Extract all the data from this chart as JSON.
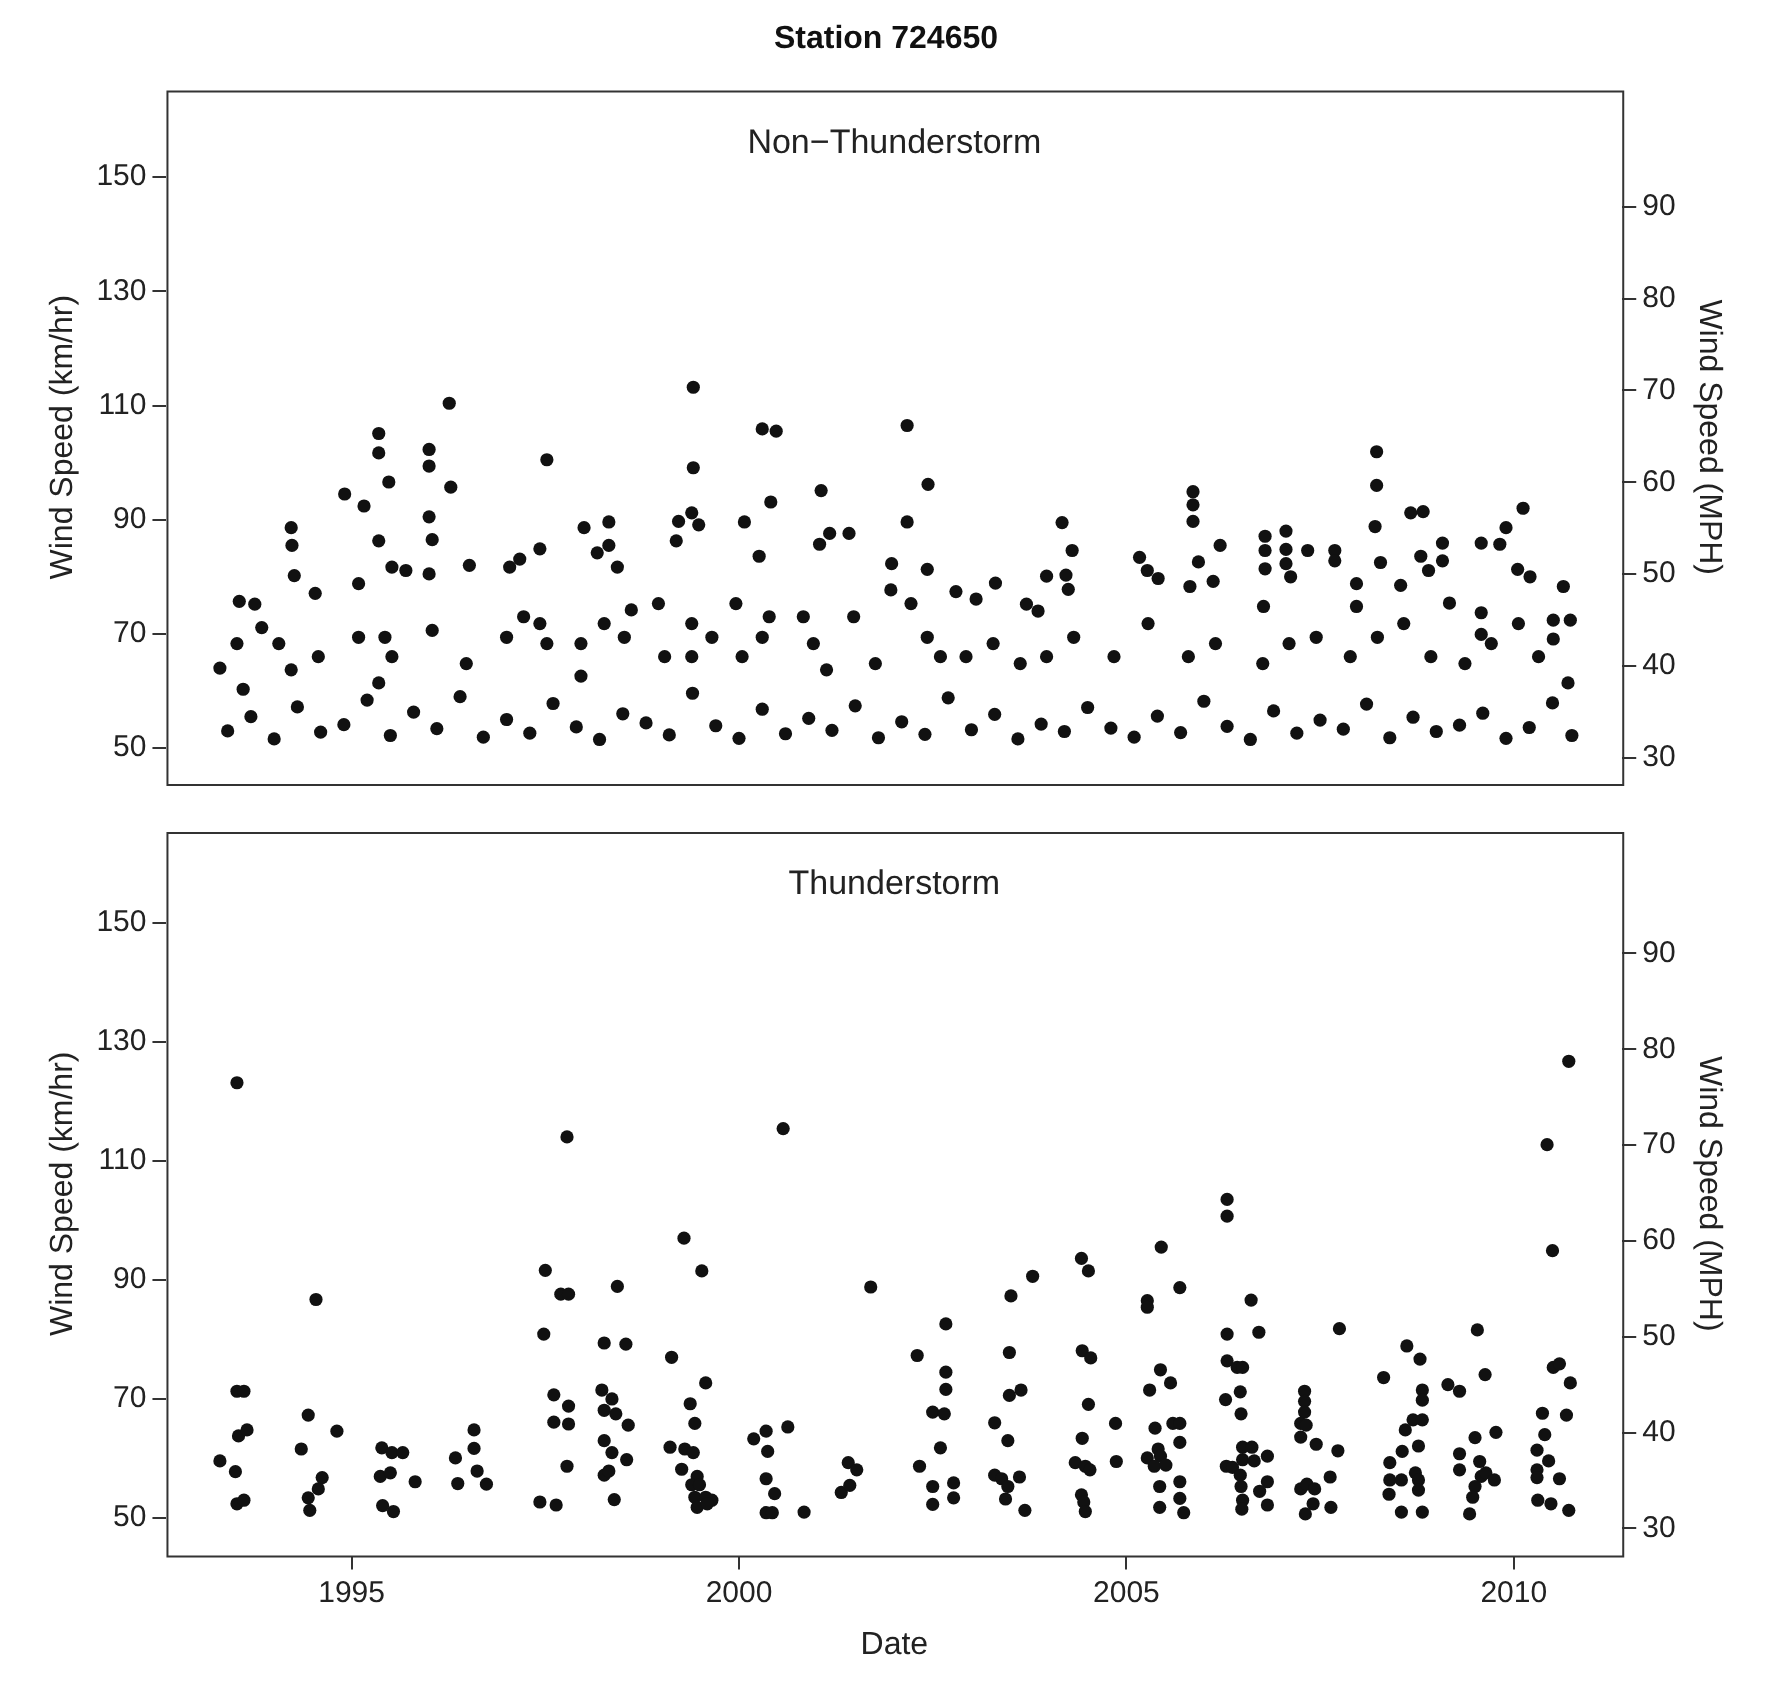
{
  "chart_data": [
    {
      "type": "scatter",
      "title": "Station 724650",
      "ylabel": "Wind Speed (km/hr)",
      "y2label": "Wind Speed (MPH)",
      "annotations": [
        "Non−Thunderstorm"
      ],
      "xlim": [
        1992.61,
        2011.4
      ],
      "ylim": [
        43.7,
        165.2
      ],
      "yticks": [
        50,
        70,
        90,
        110,
        130,
        150
      ],
      "y2lim": [
        27.16,
        102.67
      ],
      "y2ticks": [
        30,
        40,
        50,
        60,
        70,
        80,
        90
      ],
      "tick_labels": "y",
      "marker": "circle",
      "series": [
        {
          "color": "#111111",
          "x": [
            1999.41,
            1999.41,
            1999.39,
            1999.22,
            1999.48,
            1999.19,
            1996.26,
            1996.0,
            1996.0,
            1996.28,
            1996.0,
            1996.04,
            1996.0,
            1995.35,
            1995.35,
            1995.48,
            1995.35,
            1994.91,
            1995.16,
            1994.22,
            1994.23,
            1994.26,
            1994.53,
            1993.55,
            1993.75,
            1993.84,
            1993.3,
            1997.52,
            1997.43,
            1997.04,
            1997.17,
            1996.52,
            1995.52,
            1995.09,
            1995.7,
            1998.0,
            1998.32,
            1998.32,
            1998.17,
            1998.43,
            2000.3,
            2000.48,
            2000.41,
            2000.07,
            2000.26,
            2001.06,
            2001.04,
            2001.17,
            2001.42,
            2002.17,
            2002.44,
            2002.17,
            2002.43,
            2001.97,
            2001.96,
            2004.17,
            2004.3,
            2004.22,
            2004.25,
            2003.97,
            2003.31,
            2003.06,
            2002.8,
            2003.71,
            2003.86,
            2005.86,
            2005.86,
            2005.86,
            2005.93,
            2006.21,
            2005.17,
            2005.27,
            2005.41,
            2005.82,
            2006.12,
            2006.79,
            2006.79,
            2006.79,
            2007.06,
            2007.06,
            2007.06,
            2007.34,
            2007.69,
            2007.69,
            2007.12,
            2006.77,
            2008.23,
            2008.23,
            2008.21,
            2008.28,
            2007.97,
            2007.97,
            2008.67,
            2008.83,
            2008.54,
            2008.8,
            2008.9,
            2009.08,
            2009.08,
            2009.17,
            2010.12,
            2009.9,
            2009.58,
            2009.82,
            2010.05,
            2010.21,
            2010.64,
            2010.73,
            2010.51,
            2010.51,
            2009.58,
            2009.58,
            1993.52,
            1993.6,
            1994.06,
            1994.22,
            1994.57,
            1995.09,
            1995.43,
            1995.52,
            1995.35,
            1996.04,
            1996.48,
            1997.0,
            1997.22,
            1997.43,
            1997.52,
            1997.96,
            1997.96,
            1998.26,
            1998.52,
            1998.61,
            1998.96,
            1999.04,
            1999.39,
            1999.39,
            1999.65,
            1999.96,
            2000.04,
            2000.3,
            2000.39,
            2000.83,
            2000.96,
            2001.13,
            2001.48,
            2001.76,
            2002.22,
            2002.43,
            2002.6,
            2002.93,
            2003.28,
            2003.63,
            2003.97,
            2004.32,
            2004.84,
            2005.28,
            2005.8,
            2006.15,
            2006.76,
            2007.1,
            2007.45,
            2007.89,
            2008.24,
            2008.58,
            2008.93,
            2009.37,
            2009.71,
            2010.06,
            2010.32,
            2010.7,
            1993.4,
            1993.7,
            1994.0,
            1994.3,
            1994.6,
            1994.9,
            1995.2,
            1995.5,
            1995.8,
            1996.1,
            1996.4,
            1996.7,
            1997.0,
            1997.3,
            1997.6,
            1997.9,
            1998.2,
            1998.5,
            1998.8,
            1999.1,
            1999.4,
            1999.7,
            2000.0,
            2000.3,
            2000.6,
            2000.9,
            2001.2,
            2001.5,
            2001.8,
            2002.1,
            2002.4,
            2002.7,
            2003.0,
            2003.3,
            2003.6,
            2003.9,
            2004.2,
            2004.5,
            2004.8,
            2005.1,
            2005.4,
            2005.7,
            2006.0,
            2006.3,
            2006.6,
            2006.9,
            2007.2,
            2007.5,
            2007.8,
            2008.1,
            2008.4,
            2008.7,
            2009.0,
            2009.3,
            2009.6,
            2009.9,
            2010.2,
            2010.5,
            2010.75
          ],
          "values": [
            113.2,
            99.1,
            91.2,
            89.7,
            89.1,
            86.3,
            110.4,
            102.3,
            99.4,
            95.7,
            90.5,
            86.5,
            80.5,
            105.1,
            101.7,
            96.6,
            86.3,
            94.5,
            92.4,
            88.6,
            85.5,
            80.2,
            77.1,
            75.7,
            75.2,
            71.1,
            64.0,
            100.5,
            84.9,
            81.7,
            83.1,
            82.0,
            81.7,
            78.8,
            81.1,
            88.6,
            89.6,
            85.5,
            84.2,
            81.7,
            105.9,
            105.5,
            93.1,
            89.6,
            83.6,
            95.1,
            85.7,
            87.6,
            87.6,
            106.5,
            96.2,
            89.6,
            81.3,
            82.3,
            77.7,
            89.5,
            84.6,
            80.3,
            77.8,
            80.1,
            78.9,
            76.1,
            77.4,
            75.2,
            74.0,
            94.9,
            92.6,
            89.7,
            82.6,
            85.5,
            83.4,
            81.1,
            79.7,
            78.3,
            79.2,
            87.1,
            84.6,
            81.4,
            88.0,
            84.8,
            82.3,
            84.6,
            84.6,
            82.8,
            80.0,
            74.8,
            101.9,
            96.0,
            88.8,
            82.5,
            78.8,
            74.8,
            91.2,
            91.4,
            78.5,
            83.6,
            81.1,
            85.9,
            82.8,
            75.4,
            92.0,
            88.6,
            85.9,
            85.7,
            81.3,
            80.0,
            78.3,
            72.4,
            72.4,
            69.1,
            73.7,
            69.9,
            68.3,
            60.3,
            68.3,
            63.7,
            66.0,
            69.4,
            69.4,
            66.0,
            61.4,
            70.6,
            64.8,
            69.4,
            73.0,
            71.8,
            68.3,
            68.3,
            62.6,
            71.8,
            69.4,
            74.2,
            75.3,
            66.0,
            71.8,
            66.0,
            69.4,
            75.3,
            66.0,
            69.4,
            73.0,
            73.0,
            68.3,
            63.7,
            73.0,
            64.8,
            75.3,
            69.4,
            66.0,
            66.0,
            68.3,
            64.8,
            66.0,
            69.4,
            66.0,
            71.8,
            66.0,
            68.3,
            64.8,
            68.3,
            69.4,
            66.0,
            69.4,
            71.8,
            66.0,
            64.8,
            68.3,
            71.8,
            66.0,
            61.4,
            53.0,
            55.5,
            51.6,
            57.2,
            52.8,
            54.1,
            58.4,
            52.2,
            56.3,
            53.4,
            59.0,
            51.9,
            55.0,
            52.6,
            57.8,
            53.7,
            51.5,
            56.0,
            54.4,
            52.3,
            59.6,
            53.9,
            51.7,
            56.8,
            52.5,
            55.2,
            53.1,
            57.4,
            51.8,
            54.6,
            52.4,
            58.8,
            53.2,
            55.9,
            51.6,
            54.2,
            52.9,
            57.1,
            53.5,
            51.9,
            55.6,
            52.7,
            58.2,
            53.8,
            51.5,
            56.5,
            52.6,
            54.9,
            53.3,
            57.7,
            51.8,
            55.4,
            52.9,
            54.0,
            56.1,
            51.7,
            53.6,
            57.9,
            52.2
          ]
        }
      ]
    },
    {
      "type": "scatter",
      "xlabel": "Date",
      "ylabel": "Wind Speed (km/hr)",
      "y2label": "Wind Speed (MPH)",
      "annotations": [
        "Thunderstorm"
      ],
      "xlim": [
        1992.61,
        2011.4
      ],
      "xticks": [
        1995,
        2000,
        2005,
        2010
      ],
      "ylim": [
        43.7,
        165.2
      ],
      "yticks": [
        50,
        70,
        90,
        110,
        130,
        150
      ],
      "y2lim": [
        27.16,
        102.67
      ],
      "y2ticks": [
        30,
        40,
        50,
        60,
        70,
        80,
        90
      ],
      "marker": "circle",
      "series": [
        {
          "color": "#111111",
          "x": [
            1993.52,
            1993.3,
            1993.5,
            1993.52,
            1993.61,
            1993.54,
            1993.65,
            1993.52,
            1993.61,
            1994.54,
            1994.44,
            1994.35,
            1994.81,
            1994.44,
            1994.46,
            1994.57,
            1994.62,
            1995.39,
            1995.52,
            1995.66,
            1995.37,
            1995.5,
            1995.82,
            1995.4,
            1995.54,
            1996.34,
            1996.58,
            1996.58,
            1996.62,
            1996.37,
            1996.74,
            1997.5,
            1997.48,
            1997.7,
            1997.8,
            1997.78,
            1997.61,
            1997.61,
            1997.8,
            1997.8,
            1997.78,
            1997.43,
            1997.64,
            1998.43,
            1998.26,
            1998.54,
            1998.23,
            1998.36,
            1998.26,
            1998.41,
            1998.57,
            1998.26,
            1998.36,
            1998.55,
            1998.26,
            1998.32,
            1998.39,
            1999.29,
            1999.52,
            1999.13,
            1999.57,
            1999.37,
            1999.43,
            1999.11,
            1999.3,
            1999.41,
            1999.26,
            1999.46,
            1999.39,
            1999.49,
            1999.43,
            1999.57,
            1999.65,
            1999.46,
            1999.59,
            2000.19,
            2000.35,
            2000.37,
            2000.63,
            2000.35,
            2000.46,
            2000.35,
            2000.43,
            2000.57,
            2000.84,
            2001.32,
            2001.43,
            2001.41,
            2001.52,
            2001.7,
            2002.3,
            2002.67,
            2002.67,
            2002.67,
            2002.5,
            2002.65,
            2002.6,
            2002.33,
            2002.5,
            2002.77,
            2002.5,
            2002.77,
            2003.3,
            2003.47,
            2003.51,
            2003.79,
            2003.49,
            2003.49,
            2003.64,
            2003.3,
            2003.39,
            2003.47,
            2003.44,
            2003.62,
            2003.69,
            2004.42,
            2004.51,
            2004.43,
            2004.54,
            2004.51,
            2004.43,
            2004.34,
            2004.47,
            2004.53,
            2004.42,
            2004.45,
            2004.47,
            2004.86,
            2004.87,
            2005.27,
            2005.27,
            2005.45,
            2005.69,
            2005.44,
            2005.57,
            2005.3,
            2005.37,
            2005.6,
            2005.69,
            2005.69,
            2005.41,
            2005.44,
            2005.27,
            2005.36,
            2005.51,
            2005.43,
            2005.69,
            2005.69,
            2005.43,
            2005.74,
            2006.3,
            2006.3,
            2006.61,
            2006.3,
            2006.71,
            2006.3,
            2006.43,
            2006.5,
            2006.47,
            2006.28,
            2006.48,
            2006.5,
            2006.62,
            2006.29,
            2006.37,
            2006.82,
            2006.5,
            2006.65,
            2006.47,
            2006.48,
            2006.82,
            2006.5,
            2006.72,
            2006.82,
            2006.49,
            2007.3,
            2007.3,
            2007.3,
            2007.25,
            2007.32,
            2007.25,
            2007.45,
            2007.75,
            2007.73,
            2007.63,
            2007.25,
            2007.33,
            2007.43,
            2007.41,
            2007.64,
            2007.31,
            2008.32,
            2008.62,
            2008.79,
            2008.82,
            2008.82,
            2008.7,
            2008.82,
            2008.6,
            2008.77,
            2008.56,
            2008.4,
            2008.73,
            2008.77,
            2008.4,
            2008.55,
            2008.39,
            2008.77,
            2008.55,
            2008.82,
            2009.15,
            2009.3,
            2009.53,
            2009.63,
            2009.5,
            2009.77,
            2009.3,
            2009.3,
            2009.56,
            2009.58,
            2009.64,
            2009.75,
            2009.5,
            2009.47,
            2009.43,
            2010.71,
            2010.43,
            2010.5,
            2010.51,
            2010.59,
            2010.73,
            2010.37,
            2010.68,
            2010.4,
            2010.3,
            2010.45,
            2010.3,
            2010.3,
            2010.59,
            2010.31,
            2010.48,
            2010.71
          ],
          "values": [
            123.1,
            59.6,
            57.8,
            71.3,
            71.3,
            63.8,
            64.8,
            52.4,
            53.0,
            86.7,
            67.3,
            61.6,
            64.6,
            53.4,
            51.3,
            54.9,
            56.8,
            61.8,
            61.0,
            61.0,
            57.0,
            57.6,
            56.1,
            52.1,
            51.1,
            60.1,
            64.8,
            61.7,
            57.9,
            55.8,
            55.7,
            91.6,
            80.9,
            87.6,
            87.6,
            114.0,
            70.7,
            66.1,
            68.8,
            65.8,
            58.7,
            52.7,
            52.2,
            88.9,
            79.4,
            79.2,
            71.5,
            70.0,
            68.1,
            67.5,
            65.6,
            63.0,
            61.0,
            59.8,
            57.2,
            57.9,
            53.1,
            97.0,
            91.5,
            77.0,
            72.7,
            69.2,
            65.9,
            61.9,
            61.6,
            61.0,
            58.2,
            57.0,
            55.6,
            55.6,
            53.5,
            53.5,
            53.0,
            51.8,
            52.4,
            63.3,
            64.6,
            61.2,
            65.3,
            56.6,
            54.1,
            50.9,
            50.9,
            115.4,
            51.0,
            54.3,
            55.5,
            59.3,
            58.1,
            88.8,
            77.3,
            82.6,
            74.5,
            71.6,
            67.8,
            67.5,
            61.8,
            58.7,
            55.3,
            55.9,
            52.3,
            53.4,
            66.0,
            63.0,
            87.3,
            90.6,
            77.8,
            70.6,
            71.5,
            57.2,
            56.6,
            55.3,
            53.2,
            56.9,
            51.3,
            93.6,
            91.5,
            78.1,
            76.9,
            69.1,
            63.4,
            59.3,
            58.7,
            58.1,
            53.9,
            52.7,
            51.1,
            65.9,
            59.5,
            86.5,
            85.4,
            95.5,
            88.7,
            74.9,
            72.7,
            71.5,
            65.1,
            65.9,
            65.9,
            62.7,
            61.6,
            60.4,
            60.1,
            58.7,
            58.9,
            55.3,
            56.1,
            53.3,
            51.8,
            50.9,
            103.5,
            100.7,
            86.6,
            80.9,
            81.2,
            76.4,
            75.3,
            75.3,
            71.2,
            69.9,
            67.5,
            61.9,
            61.9,
            58.7,
            58.5,
            60.4,
            59.8,
            59.6,
            57.2,
            55.3,
            56.1,
            53.0,
            54.5,
            52.2,
            51.5,
            71.3,
            69.6,
            67.8,
            65.9,
            65.6,
            63.6,
            62.4,
            81.8,
            61.3,
            56.9,
            54.9,
            55.7,
            54.9,
            52.4,
            51.8,
            50.7,
            73.6,
            78.9,
            76.7,
            71.5,
            69.8,
            66.5,
            66.5,
            64.8,
            62.1,
            61.2,
            59.3,
            57.6,
            56.4,
            56.4,
            56.4,
            54.0,
            54.7,
            51.0,
            51.0,
            72.4,
            71.3,
            81.6,
            74.1,
            63.5,
            64.4,
            60.8,
            58.1,
            59.5,
            57.0,
            57.6,
            56.4,
            55.3,
            53.5,
            50.7,
            126.7,
            112.7,
            94.9,
            75.3,
            75.9,
            72.7,
            67.6,
            67.3,
            64.0,
            61.4,
            59.6,
            58.1,
            56.8,
            56.6,
            53.0,
            52.4,
            51.3
          ]
        }
      ]
    }
  ]
}
